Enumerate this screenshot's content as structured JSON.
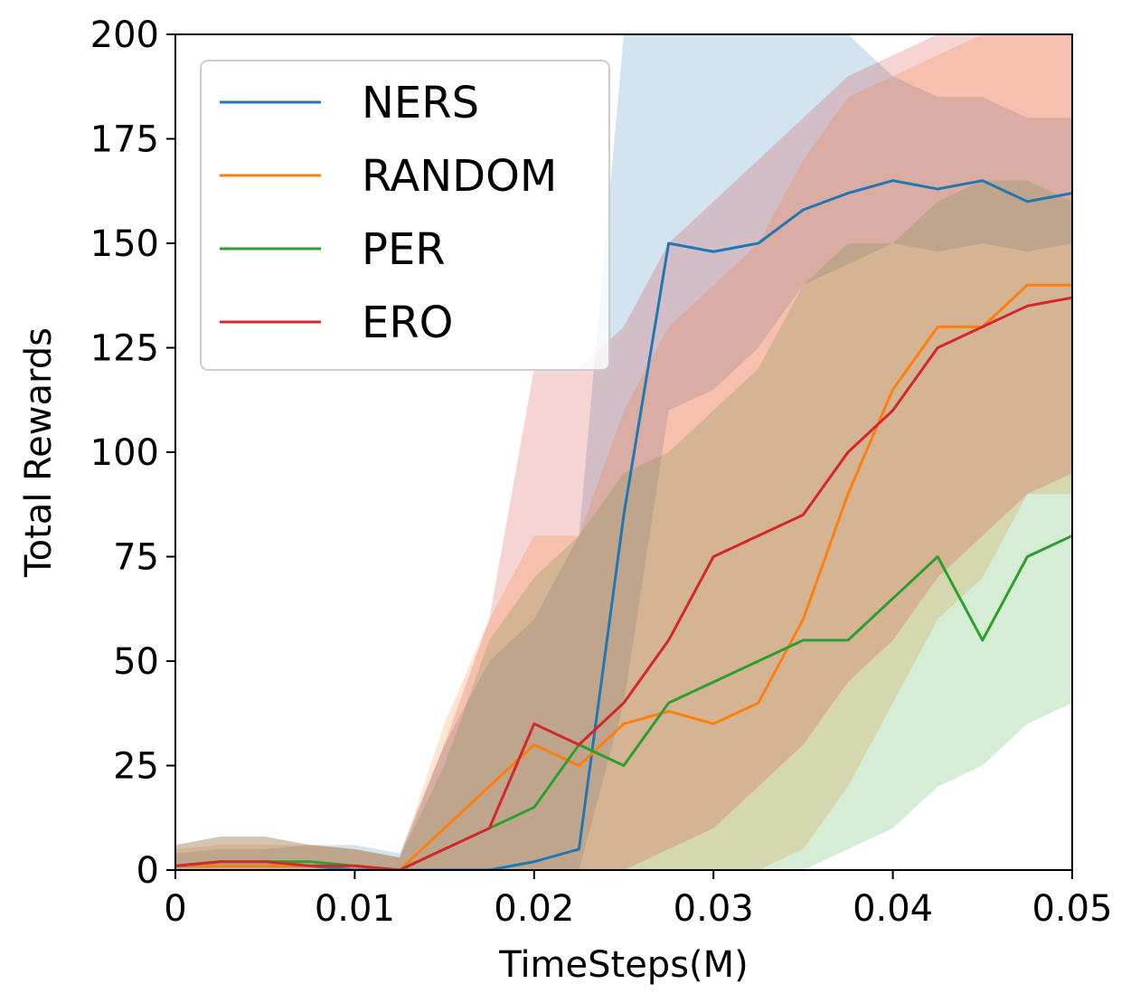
{
  "chart_data": {
    "type": "line",
    "title": "",
    "xlabel": "TimeSteps(M)",
    "ylabel": "Total Rewards",
    "xlim": [
      0,
      0.05
    ],
    "ylim": [
      0,
      200
    ],
    "xticks": [
      0,
      0.01,
      0.02,
      0.03,
      0.04,
      0.05
    ],
    "xtick_labels": [
      "0",
      "0.01",
      "0.02",
      "0.03",
      "0.04",
      "0.05"
    ],
    "yticks": [
      0,
      25,
      50,
      75,
      100,
      125,
      150,
      175,
      200
    ],
    "ytick_labels": [
      "0",
      "25",
      "50",
      "75",
      "100",
      "125",
      "150",
      "175",
      "200"
    ],
    "grid": false,
    "legend_position": "top-left",
    "x": [
      0,
      0.0025,
      0.005,
      0.0075,
      0.01,
      0.0125,
      0.015,
      0.0175,
      0.02,
      0.0225,
      0.025,
      0.0275,
      0.03,
      0.0325,
      0.035,
      0.0375,
      0.04,
      0.0425,
      0.045,
      0.0475,
      0.05
    ],
    "series": [
      {
        "name": "NERS",
        "color": "#1f77b4",
        "values": [
          1,
          1,
          1,
          1,
          0,
          0,
          0,
          0,
          2,
          5,
          85,
          150,
          148,
          150,
          158,
          162,
          165,
          163,
          165,
          160,
          162
        ],
        "lower": [
          0,
          0,
          0,
          0,
          0,
          0,
          0,
          0,
          0,
          0,
          40,
          110,
          115,
          125,
          140,
          145,
          150,
          148,
          150,
          148,
          150
        ],
        "upper": [
          4,
          5,
          5,
          6,
          6,
          4,
          30,
          50,
          60,
          80,
          200,
          200,
          200,
          200,
          200,
          200,
          190,
          185,
          185,
          180,
          180
        ]
      },
      {
        "name": "RANDOM",
        "color": "#ff7f0e",
        "values": [
          1,
          1,
          1,
          1,
          1,
          0,
          10,
          20,
          30,
          25,
          35,
          38,
          35,
          40,
          60,
          90,
          115,
          130,
          130,
          140,
          140
        ],
        "lower": [
          0,
          0,
          0,
          0,
          0,
          0,
          0,
          0,
          0,
          0,
          0,
          0,
          0,
          0,
          5,
          20,
          40,
          60,
          70,
          90,
          90
        ],
        "upper": [
          5,
          6,
          6,
          6,
          5,
          3,
          35,
          60,
          80,
          80,
          110,
          130,
          140,
          150,
          170,
          185,
          190,
          195,
          200,
          200,
          200
        ]
      },
      {
        "name": "PER",
        "color": "#2ca02c",
        "values": [
          1,
          2,
          2,
          2,
          1,
          0,
          5,
          10,
          15,
          30,
          25,
          40,
          45,
          50,
          55,
          55,
          65,
          75,
          55,
          75,
          80
        ],
        "lower": [
          0,
          0,
          0,
          0,
          0,
          0,
          0,
          0,
          0,
          0,
          0,
          0,
          0,
          0,
          0,
          5,
          10,
          20,
          25,
          35,
          40
        ],
        "upper": [
          6,
          8,
          8,
          6,
          5,
          3,
          25,
          55,
          70,
          80,
          95,
          100,
          110,
          120,
          140,
          150,
          150,
          160,
          165,
          165,
          160
        ]
      },
      {
        "name": "ERO",
        "color": "#d62728",
        "values": [
          1,
          2,
          2,
          1,
          1,
          0,
          5,
          10,
          35,
          30,
          40,
          55,
          75,
          80,
          85,
          100,
          110,
          125,
          130,
          135,
          137
        ],
        "lower": [
          0,
          0,
          0,
          0,
          0,
          0,
          0,
          0,
          0,
          0,
          0,
          5,
          10,
          20,
          30,
          45,
          55,
          70,
          80,
          90,
          95
        ],
        "upper": [
          6,
          8,
          8,
          6,
          5,
          3,
          30,
          60,
          120,
          120,
          130,
          150,
          160,
          170,
          180,
          190,
          195,
          200,
          200,
          200,
          200
        ]
      }
    ]
  }
}
